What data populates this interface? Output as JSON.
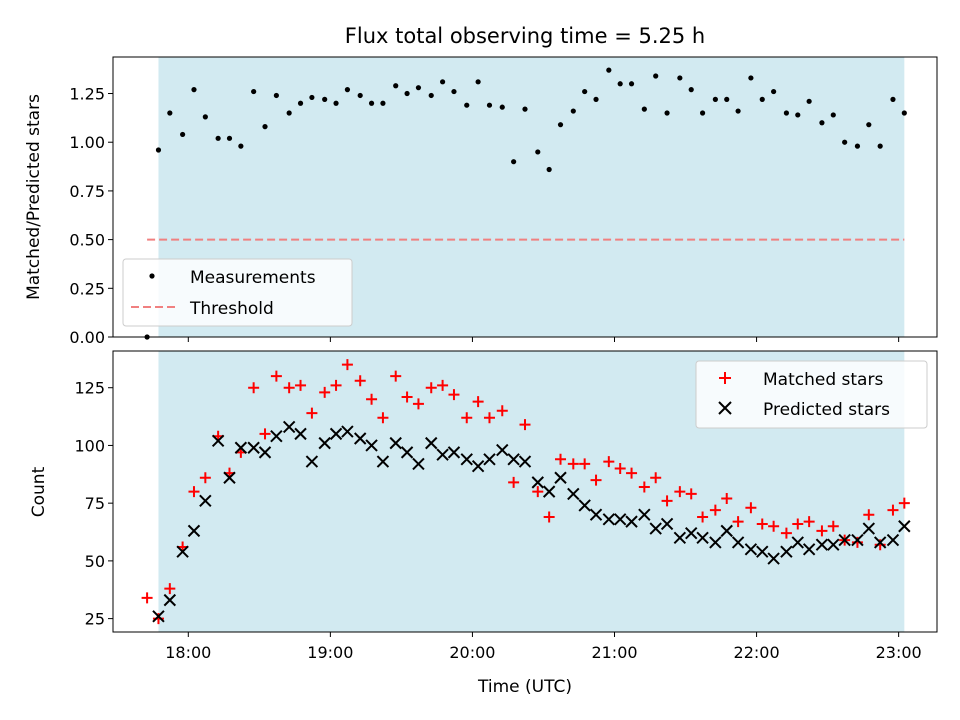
{
  "chart_data": [
    {
      "type": "scatter",
      "title": "Flux total observing time = 5.25 h",
      "xlabel": "",
      "ylabel": "Matched/Predicted stars",
      "xlim": [
        17.47,
        23.27
      ],
      "ylim": [
        0,
        1.4375
      ],
      "yticks": [
        0,
        0.25,
        0.5,
        0.75,
        1.0,
        1.25
      ],
      "ytick_labels": [
        "0.00",
        "0.25",
        "0.50",
        "0.75",
        "1.00",
        "1.25"
      ],
      "xticks": [
        18,
        19,
        20,
        21,
        22,
        23
      ],
      "shaded_span": [
        17.79,
        23.04
      ],
      "shade_color": "#add8e6",
      "legend_position": "lower-left",
      "series": [
        {
          "name": "Measurements",
          "marker": "dot",
          "color": "#000000",
          "points": [
            [
              17.71,
              0.0
            ],
            [
              17.79,
              0.96
            ],
            [
              17.87,
              1.15
            ],
            [
              17.96,
              1.04
            ],
            [
              18.04,
              1.27
            ],
            [
              18.12,
              1.13
            ],
            [
              18.21,
              1.02
            ],
            [
              18.29,
              1.02
            ],
            [
              18.37,
              0.98
            ],
            [
              18.46,
              1.26
            ],
            [
              18.54,
              1.08
            ],
            [
              18.62,
              1.24
            ],
            [
              18.71,
              1.15
            ],
            [
              18.79,
              1.2
            ],
            [
              18.87,
              1.23
            ],
            [
              18.96,
              1.22
            ],
            [
              19.04,
              1.2
            ],
            [
              19.12,
              1.27
            ],
            [
              19.21,
              1.24
            ],
            [
              19.29,
              1.2
            ],
            [
              19.37,
              1.2
            ],
            [
              19.46,
              1.29
            ],
            [
              19.54,
              1.25
            ],
            [
              19.62,
              1.28
            ],
            [
              19.71,
              1.24
            ],
            [
              19.79,
              1.31
            ],
            [
              19.87,
              1.26
            ],
            [
              19.96,
              1.19
            ],
            [
              20.04,
              1.31
            ],
            [
              20.12,
              1.19
            ],
            [
              20.21,
              1.18
            ],
            [
              20.29,
              0.9
            ],
            [
              20.37,
              1.17
            ],
            [
              20.46,
              0.95
            ],
            [
              20.54,
              0.86
            ],
            [
              20.62,
              1.09
            ],
            [
              20.71,
              1.16
            ],
            [
              20.79,
              1.26
            ],
            [
              20.87,
              1.22
            ],
            [
              20.96,
              1.37
            ],
            [
              21.04,
              1.3
            ],
            [
              21.12,
              1.3
            ],
            [
              21.21,
              1.17
            ],
            [
              21.29,
              1.34
            ],
            [
              21.37,
              1.15
            ],
            [
              21.46,
              1.33
            ],
            [
              21.54,
              1.27
            ],
            [
              21.62,
              1.15
            ],
            [
              21.71,
              1.22
            ],
            [
              21.79,
              1.22
            ],
            [
              21.87,
              1.16
            ],
            [
              21.96,
              1.33
            ],
            [
              22.04,
              1.22
            ],
            [
              22.12,
              1.26
            ],
            [
              22.21,
              1.15
            ],
            [
              22.29,
              1.14
            ],
            [
              22.37,
              1.21
            ],
            [
              22.46,
              1.1
            ],
            [
              22.54,
              1.14
            ],
            [
              22.62,
              1.0
            ],
            [
              22.71,
              0.98
            ],
            [
              22.79,
              1.09
            ],
            [
              22.87,
              0.98
            ],
            [
              22.96,
              1.22
            ],
            [
              23.04,
              1.15
            ]
          ]
        },
        {
          "name": "Threshold",
          "marker": "dashed-line",
          "color": "#f08080",
          "points": [
            [
              17.71,
              0.5
            ],
            [
              23.04,
              0.5
            ]
          ]
        }
      ]
    },
    {
      "type": "scatter",
      "title": "",
      "xlabel": "Time (UTC)",
      "ylabel": "Count",
      "xlim": [
        17.47,
        23.27
      ],
      "ylim": [
        19.2,
        140.9
      ],
      "yticks": [
        25,
        50,
        75,
        100,
        125
      ],
      "ytick_labels": [
        "25",
        "50",
        "75",
        "100",
        "125"
      ],
      "xticks": [
        18,
        19,
        20,
        21,
        22,
        23
      ],
      "xtick_labels": [
        "18:00",
        "19:00",
        "20:00",
        "21:00",
        "22:00",
        "23:00"
      ],
      "shaded_span": [
        17.79,
        23.04
      ],
      "shade_color": "#add8e6",
      "legend_position": "upper-right",
      "series": [
        {
          "name": "Matched stars",
          "marker": "plus",
          "color": "#ff0000",
          "points": [
            [
              17.71,
              34
            ],
            [
              17.79,
              25
            ],
            [
              17.87,
              38
            ],
            [
              17.96,
              56
            ],
            [
              18.04,
              80
            ],
            [
              18.12,
              86
            ],
            [
              18.21,
              104
            ],
            [
              18.29,
              88
            ],
            [
              18.37,
              97
            ],
            [
              18.46,
              125
            ],
            [
              18.54,
              105
            ],
            [
              18.62,
              130
            ],
            [
              18.71,
              125
            ],
            [
              18.79,
              126
            ],
            [
              18.87,
              114
            ],
            [
              18.96,
              123
            ],
            [
              19.04,
              126
            ],
            [
              19.12,
              135
            ],
            [
              19.21,
              128
            ],
            [
              19.29,
              120
            ],
            [
              19.37,
              112
            ],
            [
              19.46,
              130
            ],
            [
              19.54,
              121
            ],
            [
              19.62,
              118
            ],
            [
              19.71,
              125
            ],
            [
              19.79,
              126
            ],
            [
              19.87,
              122
            ],
            [
              19.96,
              112
            ],
            [
              20.04,
              119
            ],
            [
              20.12,
              112
            ],
            [
              20.21,
              115
            ],
            [
              20.29,
              84
            ],
            [
              20.37,
              109
            ],
            [
              20.46,
              80
            ],
            [
              20.54,
              69
            ],
            [
              20.62,
              94
            ],
            [
              20.71,
              92
            ],
            [
              20.79,
              92
            ],
            [
              20.87,
              85
            ],
            [
              20.96,
              93
            ],
            [
              21.04,
              90
            ],
            [
              21.12,
              88
            ],
            [
              21.21,
              82
            ],
            [
              21.29,
              86
            ],
            [
              21.37,
              76
            ],
            [
              21.46,
              80
            ],
            [
              21.54,
              79
            ],
            [
              21.62,
              69
            ],
            [
              21.71,
              72
            ],
            [
              21.79,
              77
            ],
            [
              21.87,
              67
            ],
            [
              21.96,
              73
            ],
            [
              22.04,
              66
            ],
            [
              22.12,
              65
            ],
            [
              22.21,
              62
            ],
            [
              22.29,
              66
            ],
            [
              22.37,
              67
            ],
            [
              22.46,
              63
            ],
            [
              22.54,
              65
            ],
            [
              22.62,
              59
            ],
            [
              22.71,
              58
            ],
            [
              22.79,
              70
            ],
            [
              22.87,
              57
            ],
            [
              22.96,
              72
            ],
            [
              23.04,
              75
            ]
          ]
        },
        {
          "name": "Predicted stars",
          "marker": "x",
          "color": "#000000",
          "points": [
            [
              17.79,
              26
            ],
            [
              17.87,
              33
            ],
            [
              17.96,
              54
            ],
            [
              18.04,
              63
            ],
            [
              18.12,
              76
            ],
            [
              18.21,
              102
            ],
            [
              18.29,
              86
            ],
            [
              18.37,
              99
            ],
            [
              18.46,
              99
            ],
            [
              18.54,
              97
            ],
            [
              18.62,
              104
            ],
            [
              18.71,
              108
            ],
            [
              18.79,
              105
            ],
            [
              18.87,
              93
            ],
            [
              18.96,
              101
            ],
            [
              19.04,
              105
            ],
            [
              19.12,
              106
            ],
            [
              19.21,
              103
            ],
            [
              19.29,
              100
            ],
            [
              19.37,
              93
            ],
            [
              19.46,
              101
            ],
            [
              19.54,
              97
            ],
            [
              19.62,
              92
            ],
            [
              19.71,
              101
            ],
            [
              19.79,
              96
            ],
            [
              19.87,
              97
            ],
            [
              19.96,
              94
            ],
            [
              20.04,
              91
            ],
            [
              20.12,
              94
            ],
            [
              20.21,
              98
            ],
            [
              20.29,
              94
            ],
            [
              20.37,
              93
            ],
            [
              20.46,
              84
            ],
            [
              20.54,
              80
            ],
            [
              20.62,
              86
            ],
            [
              20.71,
              79
            ],
            [
              20.79,
              74
            ],
            [
              20.87,
              70
            ],
            [
              20.96,
              68
            ],
            [
              21.04,
              68
            ],
            [
              21.12,
              67
            ],
            [
              21.21,
              70
            ],
            [
              21.29,
              64
            ],
            [
              21.37,
              66
            ],
            [
              21.46,
              60
            ],
            [
              21.54,
              62
            ],
            [
              21.62,
              60
            ],
            [
              21.71,
              58
            ],
            [
              21.79,
              63
            ],
            [
              21.87,
              58
            ],
            [
              21.96,
              55
            ],
            [
              22.04,
              54
            ],
            [
              22.12,
              51
            ],
            [
              22.21,
              54
            ],
            [
              22.29,
              58
            ],
            [
              22.37,
              55
            ],
            [
              22.46,
              57
            ],
            [
              22.54,
              57
            ],
            [
              22.62,
              59
            ],
            [
              22.71,
              59
            ],
            [
              22.79,
              64
            ],
            [
              22.87,
              58
            ],
            [
              22.96,
              59
            ],
            [
              23.04,
              65
            ]
          ]
        }
      ]
    }
  ]
}
